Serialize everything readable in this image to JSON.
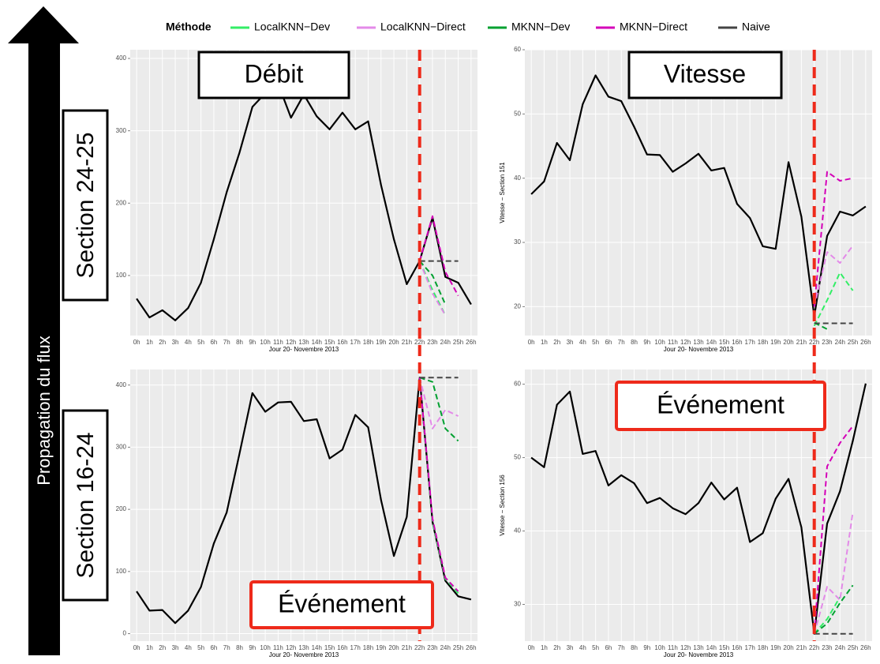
{
  "legend": {
    "title": "Méthode"
  },
  "annotations": {
    "arrow": "Propagation du flux",
    "sections": [
      "Section 24-25",
      "Section 16-24"
    ],
    "events": [
      "Événement",
      "Événement"
    ]
  },
  "chart_data": [
    {
      "type": "line",
      "title": "Débit",
      "xlabel": "Jour 20- Novembre 2013",
      "categories": [
        "0h",
        "1h",
        "2h",
        "3h",
        "4h",
        "5h",
        "6h",
        "7h",
        "8h",
        "9h",
        "10h",
        "11h",
        "12h",
        "13h",
        "14h",
        "15h",
        "16h",
        "17h",
        "18h",
        "19h",
        "20h",
        "21h",
        "22h",
        "23h",
        "24h",
        "25h",
        "26h"
      ],
      "ylim": [
        17,
        412
      ],
      "yticks": [
        100,
        200,
        300,
        400
      ],
      "grid": true,
      "series": [
        {
          "color": "#000000",
          "style": "solid",
          "values": [
            68,
            42,
            52,
            38,
            55,
            90,
            150,
            215,
            270,
            333,
            352,
            365,
            318,
            350,
            320,
            302,
            325,
            302,
            313,
            225,
            150,
            88,
            120,
            180,
            98,
            90,
            60
          ]
        },
        {
          "name": "LocalKNN−Dev",
          "color": "#33ee66",
          "style": "dashed",
          "values": [
            null,
            null,
            null,
            null,
            null,
            null,
            null,
            null,
            null,
            null,
            null,
            null,
            null,
            null,
            null,
            null,
            null,
            null,
            null,
            null,
            null,
            null,
            120,
            80,
            45,
            null,
            null
          ]
        },
        {
          "name": "LocalKNN−Direct",
          "color": "#e38ae8",
          "style": "dashed",
          "values": [
            null,
            null,
            null,
            null,
            null,
            null,
            null,
            null,
            null,
            null,
            null,
            null,
            null,
            null,
            null,
            null,
            null,
            null,
            null,
            null,
            null,
            null,
            120,
            75,
            45,
            null,
            null
          ]
        },
        {
          "name": "MKNN−Dev",
          "color": "#00a030",
          "style": "dashed",
          "values": [
            null,
            null,
            null,
            null,
            null,
            null,
            null,
            null,
            null,
            null,
            null,
            null,
            null,
            null,
            null,
            null,
            null,
            null,
            null,
            null,
            null,
            null,
            120,
            100,
            60,
            null,
            null
          ]
        },
        {
          "name": "MKNN−Direct",
          "color": "#d400b8",
          "style": "dashed",
          "values": [
            null,
            null,
            null,
            null,
            null,
            null,
            null,
            null,
            null,
            null,
            null,
            null,
            null,
            null,
            null,
            null,
            null,
            null,
            null,
            null,
            null,
            null,
            120,
            182,
            105,
            72,
            null
          ]
        },
        {
          "name": "Naive",
          "color": "#444444",
          "style": "dashed",
          "values": [
            null,
            null,
            null,
            null,
            null,
            null,
            null,
            null,
            null,
            null,
            null,
            null,
            null,
            null,
            null,
            null,
            null,
            null,
            null,
            null,
            null,
            null,
            120,
            120,
            120,
            120,
            null
          ]
        }
      ]
    },
    {
      "type": "line",
      "title": "Vitesse",
      "xlabel": "Jour 20- Novembre 2013",
      "ylabel": "Vitesse − Section 151",
      "categories": [
        "0h",
        "1h",
        "2h",
        "3h",
        "4h",
        "5h",
        "6h",
        "7h",
        "8h",
        "9h",
        "10h",
        "11h",
        "12h",
        "13h",
        "14h",
        "15h",
        "16h",
        "17h",
        "18h",
        "19h",
        "20h",
        "21h",
        "22h",
        "23h",
        "24h",
        "25h",
        "26h"
      ],
      "ylim": [
        15.5,
        60
      ],
      "yticks": [
        20,
        30,
        40,
        50,
        60
      ],
      "grid": true,
      "series": [
        {
          "color": "#000000",
          "style": "solid",
          "values": [
            37.5,
            39.5,
            45.5,
            42.8,
            51.5,
            56,
            52.7,
            52,
            48,
            43.7,
            43.6,
            41,
            42.3,
            43.8,
            41.2,
            41.6,
            36,
            33.8,
            29.4,
            29,
            42.5,
            34,
            18.5,
            31,
            34.8,
            34.2,
            35.6
          ]
        },
        {
          "color": "#33ee66",
          "style": "dashed",
          "values": [
            null,
            null,
            null,
            null,
            null,
            null,
            null,
            null,
            null,
            null,
            null,
            null,
            null,
            null,
            null,
            null,
            null,
            null,
            null,
            null,
            null,
            null,
            17,
            21,
            25.3,
            22.5,
            null
          ]
        },
        {
          "color": "#e38ae8",
          "style": "dashed",
          "values": [
            null,
            null,
            null,
            null,
            null,
            null,
            null,
            null,
            null,
            null,
            null,
            null,
            null,
            null,
            null,
            null,
            null,
            null,
            null,
            null,
            null,
            null,
            20,
            28.5,
            26.8,
            29.5,
            null
          ]
        },
        {
          "color": "#00a030",
          "style": "dashed",
          "values": [
            null,
            null,
            null,
            null,
            null,
            null,
            null,
            null,
            null,
            null,
            null,
            null,
            null,
            null,
            null,
            null,
            null,
            null,
            null,
            null,
            null,
            null,
            17.5,
            16.5,
            null,
            null,
            null
          ]
        },
        {
          "color": "#d400b8",
          "style": "dashed",
          "values": [
            null,
            null,
            null,
            null,
            null,
            null,
            null,
            null,
            null,
            null,
            null,
            null,
            null,
            null,
            null,
            null,
            null,
            null,
            null,
            null,
            null,
            null,
            20,
            41,
            39.6,
            40,
            null
          ]
        },
        {
          "color": "#444444",
          "style": "dashed",
          "values": [
            null,
            null,
            null,
            null,
            null,
            null,
            null,
            null,
            null,
            null,
            null,
            null,
            null,
            null,
            null,
            null,
            null,
            null,
            null,
            null,
            null,
            null,
            17.4,
            17.4,
            17.4,
            17.4,
            null
          ]
        }
      ]
    },
    {
      "type": "line",
      "xlabel": "Jour 20- Novembre 2013",
      "categories": [
        "0h",
        "1h",
        "2h",
        "3h",
        "4h",
        "5h",
        "6h",
        "7h",
        "8h",
        "9h",
        "10h",
        "11h",
        "12h",
        "13h",
        "14h",
        "15h",
        "16h",
        "17h",
        "18h",
        "19h",
        "20h",
        "21h",
        "22h",
        "23h",
        "24h",
        "25h",
        "26h"
      ],
      "ylim": [
        -12,
        425
      ],
      "yticks": [
        0,
        100,
        200,
        300,
        400
      ],
      "grid": true,
      "series": [
        {
          "color": "#000000",
          "style": "solid",
          "values": [
            68,
            37,
            38,
            17,
            37,
            75,
            145,
            195,
            290,
            387,
            357,
            372,
            373,
            342,
            345,
            282,
            296,
            352,
            332,
            215,
            125,
            188,
            412,
            180,
            85,
            60,
            55
          ]
        },
        {
          "color": "#33ee66",
          "style": "dashed",
          "values": [
            null,
            null,
            null,
            null,
            null,
            null,
            null,
            null,
            null,
            null,
            null,
            null,
            null,
            null,
            null,
            null,
            null,
            null,
            null,
            null,
            null,
            null,
            412,
            180,
            88,
            65,
            null
          ]
        },
        {
          "color": "#e38ae8",
          "style": "dashed",
          "values": [
            null,
            null,
            null,
            null,
            null,
            null,
            null,
            null,
            null,
            null,
            null,
            null,
            null,
            null,
            null,
            null,
            null,
            null,
            null,
            null,
            null,
            null,
            412,
            330,
            360,
            350,
            null
          ]
        },
        {
          "color": "#00a030",
          "style": "dashed",
          "values": [
            null,
            null,
            null,
            null,
            null,
            null,
            null,
            null,
            null,
            null,
            null,
            null,
            null,
            null,
            null,
            null,
            null,
            null,
            null,
            null,
            null,
            null,
            412,
            405,
            330,
            310,
            null
          ]
        },
        {
          "color": "#d400b8",
          "style": "dashed",
          "values": [
            null,
            null,
            null,
            null,
            null,
            null,
            null,
            null,
            null,
            null,
            null,
            null,
            null,
            null,
            null,
            null,
            null,
            null,
            null,
            null,
            null,
            null,
            412,
            185,
            90,
            68,
            null
          ]
        },
        {
          "color": "#444444",
          "style": "dashed",
          "values": [
            null,
            null,
            null,
            null,
            null,
            null,
            null,
            null,
            null,
            null,
            null,
            null,
            null,
            null,
            null,
            null,
            null,
            null,
            null,
            null,
            null,
            null,
            412,
            412,
            412,
            412,
            null
          ]
        }
      ]
    },
    {
      "type": "line",
      "xlabel": "Jour 20- Novembre 2013",
      "ylabel": "Vitesse − Section 156",
      "categories": [
        "0h",
        "1h",
        "2h",
        "3h",
        "4h",
        "5h",
        "6h",
        "7h",
        "8h",
        "9h",
        "10h",
        "11h",
        "12h",
        "13h",
        "14h",
        "15h",
        "16h",
        "17h",
        "18h",
        "19h",
        "20h",
        "21h",
        "22h",
        "23h",
        "24h",
        "25h",
        "26h"
      ],
      "ylim": [
        25,
        62
      ],
      "yticks": [
        30,
        40,
        50,
        60
      ],
      "grid": true,
      "series": [
        {
          "color": "#000000",
          "style": "solid",
          "values": [
            50,
            48.7,
            57.2,
            59,
            50.5,
            50.9,
            46.2,
            47.6,
            46.5,
            43.8,
            44.5,
            43.1,
            42.3,
            43.8,
            46.6,
            44.3,
            45.9,
            38.5,
            39.7,
            44.4,
            47.1,
            40.5,
            26,
            41,
            45.4,
            52.3,
            60.1
          ]
        },
        {
          "color": "#33ee66",
          "style": "dashed",
          "values": [
            null,
            null,
            null,
            null,
            null,
            null,
            null,
            null,
            null,
            null,
            null,
            null,
            null,
            null,
            null,
            null,
            null,
            null,
            null,
            null,
            null,
            null,
            26,
            28,
            31,
            null,
            null
          ]
        },
        {
          "color": "#e38ae8",
          "style": "dashed",
          "values": [
            null,
            null,
            null,
            null,
            null,
            null,
            null,
            null,
            null,
            null,
            null,
            null,
            null,
            null,
            null,
            null,
            null,
            null,
            null,
            null,
            null,
            null,
            26,
            32.4,
            30.6,
            42.6,
            null
          ]
        },
        {
          "color": "#00a030",
          "style": "dashed",
          "values": [
            null,
            null,
            null,
            null,
            null,
            null,
            null,
            null,
            null,
            null,
            null,
            null,
            null,
            null,
            null,
            null,
            null,
            null,
            null,
            null,
            null,
            null,
            26,
            27.4,
            30.2,
            32.6,
            null
          ]
        },
        {
          "color": "#d400b8",
          "style": "dashed",
          "values": [
            null,
            null,
            null,
            null,
            null,
            null,
            null,
            null,
            null,
            null,
            null,
            null,
            null,
            null,
            null,
            null,
            null,
            null,
            null,
            null,
            null,
            null,
            26,
            48.8,
            52,
            54.3,
            null
          ]
        },
        {
          "color": "#444444",
          "style": "dashed",
          "values": [
            null,
            null,
            null,
            null,
            null,
            null,
            null,
            null,
            null,
            null,
            null,
            null,
            null,
            null,
            null,
            null,
            null,
            null,
            null,
            null,
            null,
            null,
            26,
            26,
            26,
            26,
            null
          ]
        }
      ]
    }
  ]
}
